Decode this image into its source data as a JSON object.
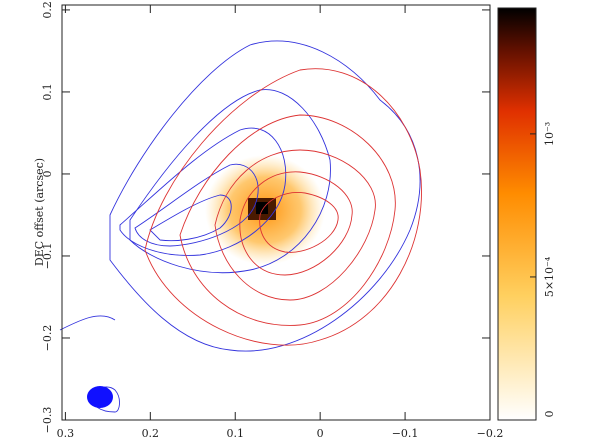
{
  "chart_data": {
    "type": "image",
    "ylabel": "DEC offset (arcsec)",
    "xlim": [
      0.304,
      -0.2
    ],
    "xticks": [
      0.3,
      0.2,
      0.1,
      0,
      {
        "value": -0.1,
        "label": "−0.1"
      },
      {
        "value": -0.2,
        "label": "−0.2"
      }
    ],
    "ylim": [
      -0.3,
      0.206
    ],
    "yticks": [
      0.2,
      0.1,
      0,
      {
        "value": -0.1,
        "label": "−0.1"
      },
      {
        "value": -0.2,
        "label": "−0.2"
      },
      {
        "value": -0.3,
        "label": "−0.3"
      }
    ],
    "colorbar": {
      "lim": [
        0,
        0.00144
      ],
      "ticks": [
        0,
        {
          "value": 0.0005,
          "label": "5×10⁻⁴"
        },
        {
          "value": 0.001,
          "label": "10⁻³"
        }
      ]
    },
    "contour_colors": [
      "#3333dd",
      "#dd3333"
    ]
  }
}
